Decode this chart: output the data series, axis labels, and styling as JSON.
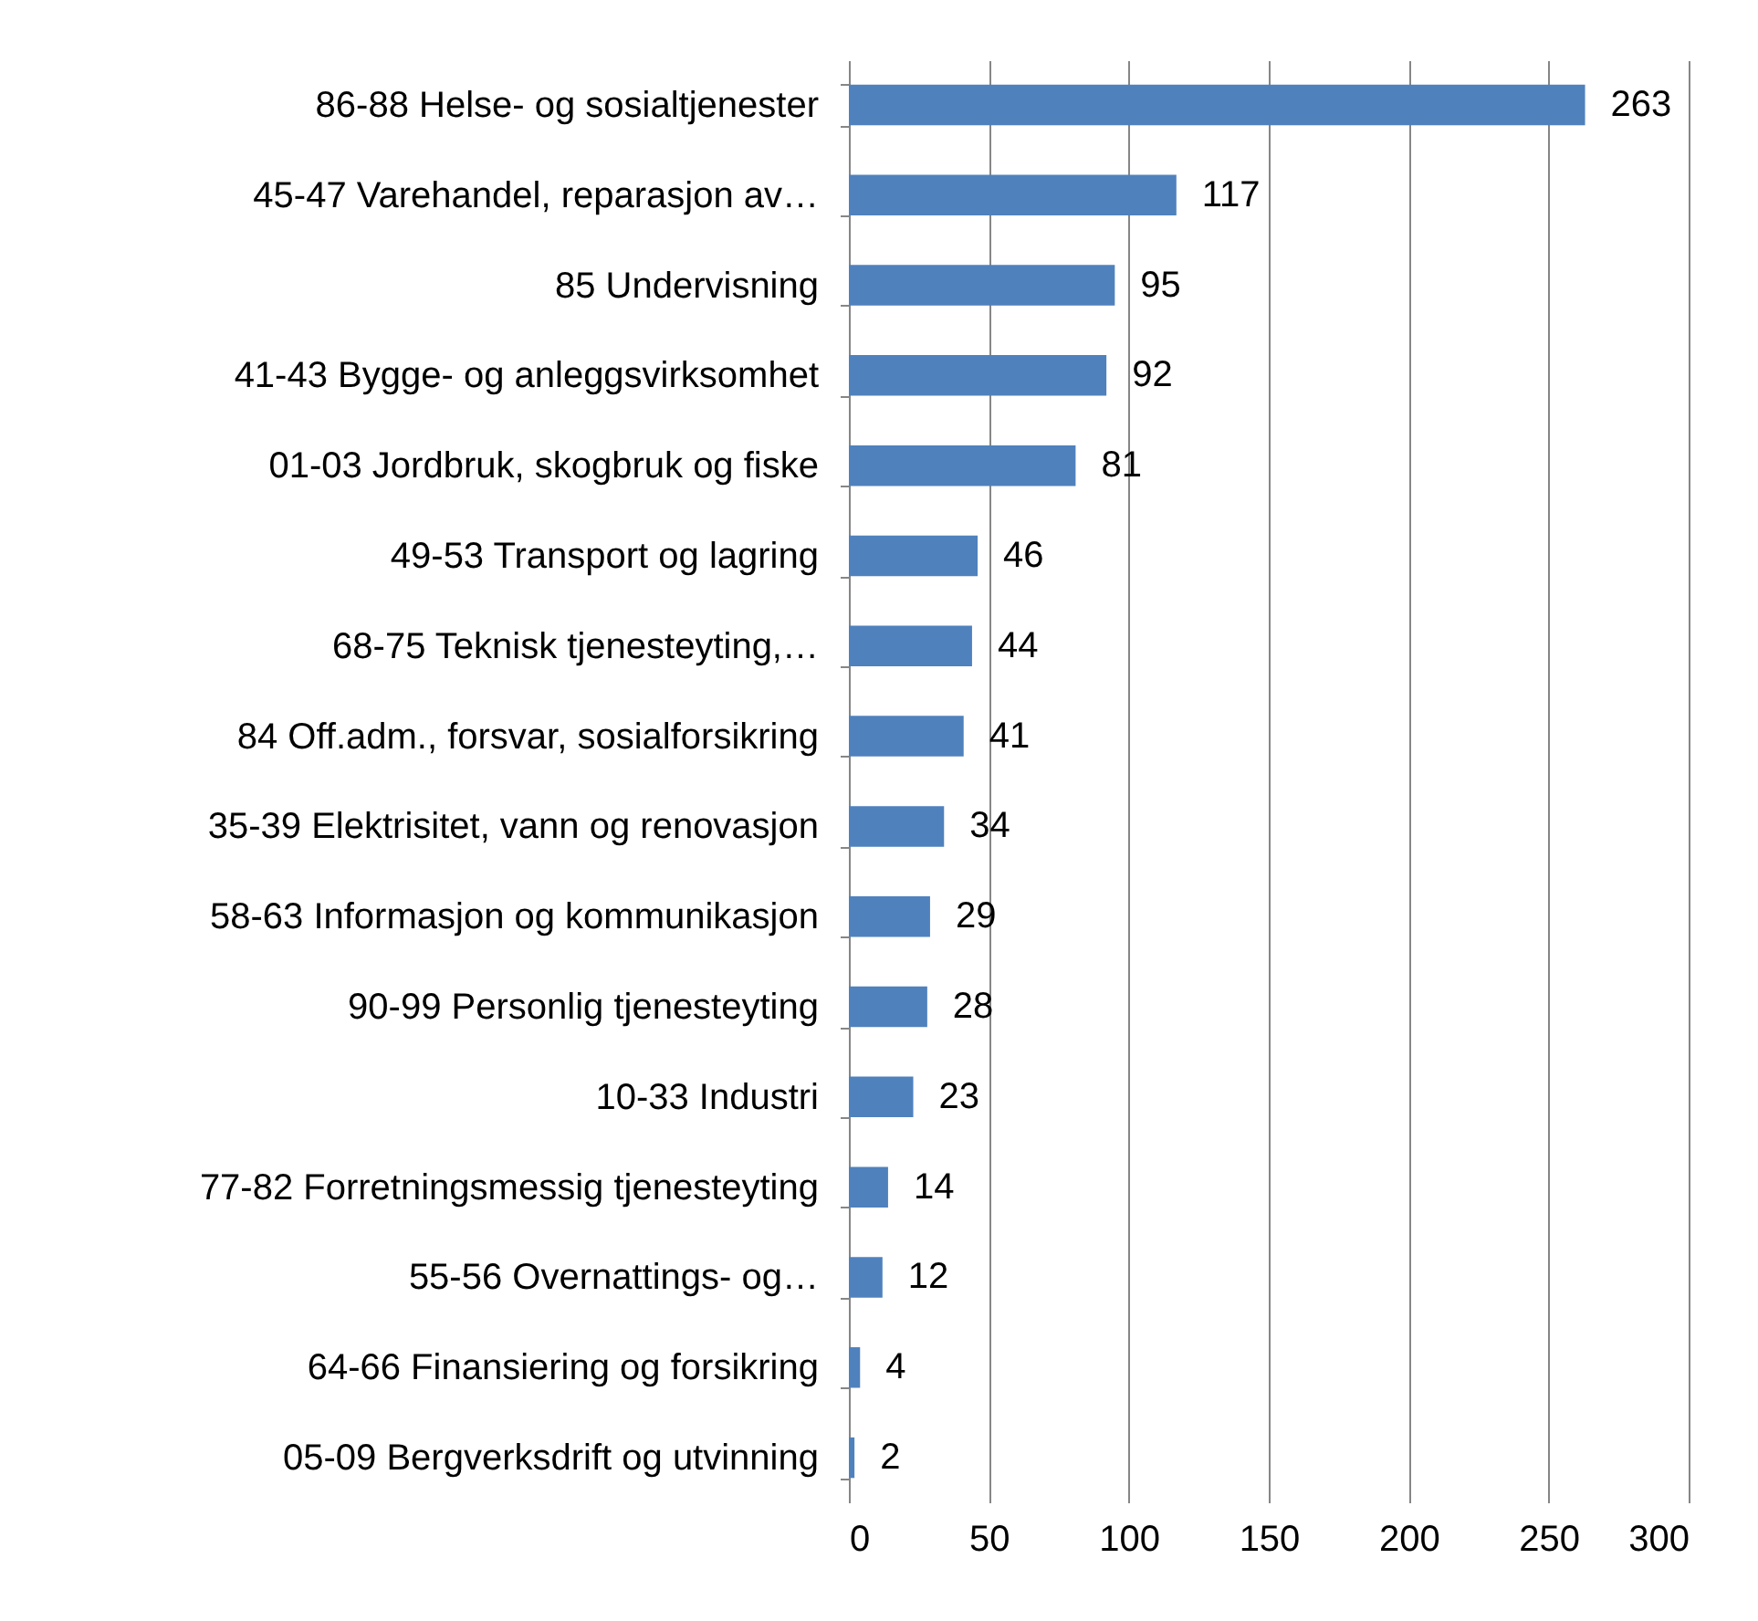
{
  "chart_data": {
    "type": "bar",
    "orientation": "horizontal",
    "categories": [
      "86-88 Helse- og sosialtjenester",
      "45-47 Varehandel, reparasjon av…",
      "85 Undervisning",
      "41-43 Bygge- og anleggsvirksomhet",
      "01-03 Jordbruk, skogbruk og fiske",
      "49-53 Transport og lagring",
      "68-75 Teknisk tjenesteyting,…",
      "84 Off.adm., forsvar, sosialforsikring",
      "35-39 Elektrisitet, vann og renovasjon",
      "58-63 Informasjon og kommunikasjon",
      "90-99 Personlig tjenesteyting",
      "10-33 Industri",
      "77-82 Forretningsmessig tjenesteyting",
      "55-56 Overnattings- og…",
      "64-66 Finansiering og forsikring",
      "05-09 Bergverksdrift og utvinning"
    ],
    "values": [
      263,
      117,
      95,
      92,
      81,
      46,
      44,
      41,
      34,
      29,
      28,
      23,
      14,
      12,
      4,
      2
    ],
    "color": "#4f81bd",
    "xlim": [
      0,
      300
    ],
    "xticks": [
      0,
      50,
      100,
      150,
      200,
      250,
      300
    ],
    "grid": "x",
    "data_labels": true
  }
}
